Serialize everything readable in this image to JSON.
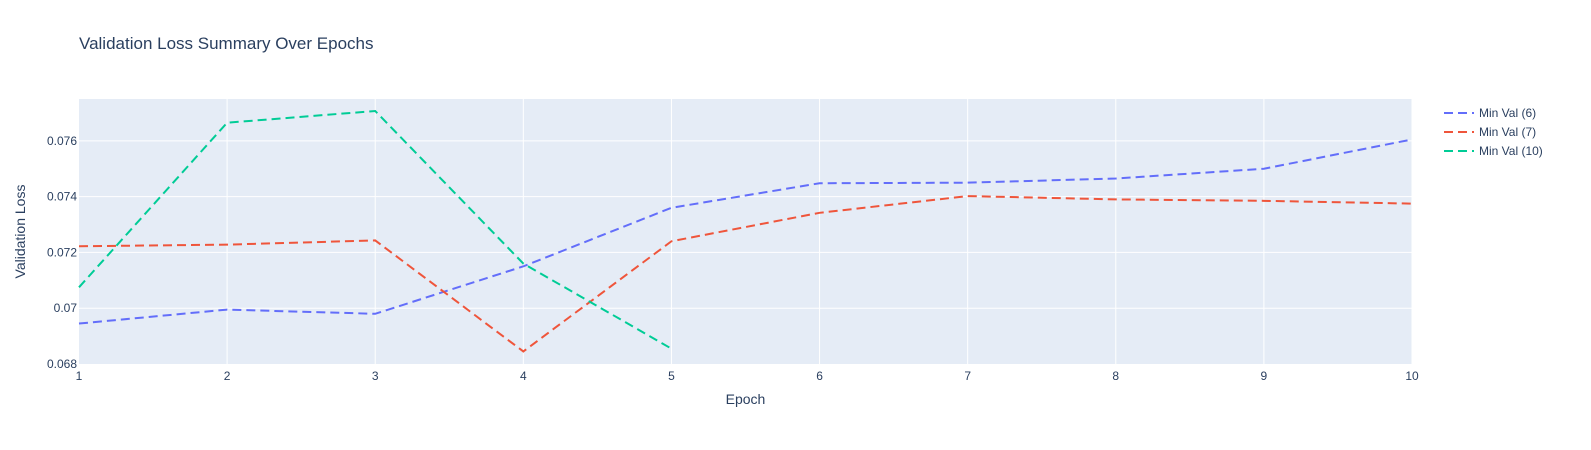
{
  "chart_data": {
    "type": "line",
    "title": "Validation Loss Summary Over Epochs",
    "xlabel": "Epoch",
    "ylabel": "Validation Loss",
    "xlim": [
      1,
      10
    ],
    "ylim": [
      0.068,
      0.0775
    ],
    "x_ticks": [
      1,
      2,
      3,
      4,
      5,
      6,
      7,
      8,
      9,
      10
    ],
    "x_tick_labels": [
      "1",
      "2",
      "3",
      "4",
      "5",
      "6",
      "7",
      "8",
      "9",
      "10"
    ],
    "y_ticks": [
      0.068,
      0.07,
      0.072,
      0.074,
      0.076
    ],
    "y_tick_labels": [
      "0.068",
      "0.07",
      "0.072",
      "0.074",
      "0.076"
    ],
    "grid": true,
    "legend_position": "right",
    "background_color": "#e5ecf6",
    "line_style": "dashed",
    "series": [
      {
        "name": "Min Val (6)",
        "color": "#636efa",
        "x": [
          1,
          2,
          3,
          4,
          5,
          6,
          7,
          8,
          9,
          10
        ],
        "y": [
          0.06945,
          0.06995,
          0.0698,
          0.0715,
          0.0736,
          0.07448,
          0.0745,
          0.07465,
          0.075,
          0.07605
        ]
      },
      {
        "name": "Min Val (7)",
        "color": "#ef553b",
        "x": [
          1,
          2,
          3,
          4,
          5,
          6,
          7,
          8,
          9,
          10
        ],
        "y": [
          0.07222,
          0.07228,
          0.07243,
          0.06845,
          0.0724,
          0.07342,
          0.07402,
          0.0739,
          0.07385,
          0.07375
        ]
      },
      {
        "name": "Min Val (10)",
        "color": "#00cc96",
        "x": [
          1,
          2,
          3,
          4,
          5
        ],
        "y": [
          0.07075,
          0.07665,
          0.07707,
          0.0716,
          0.06855
        ]
      }
    ]
  }
}
